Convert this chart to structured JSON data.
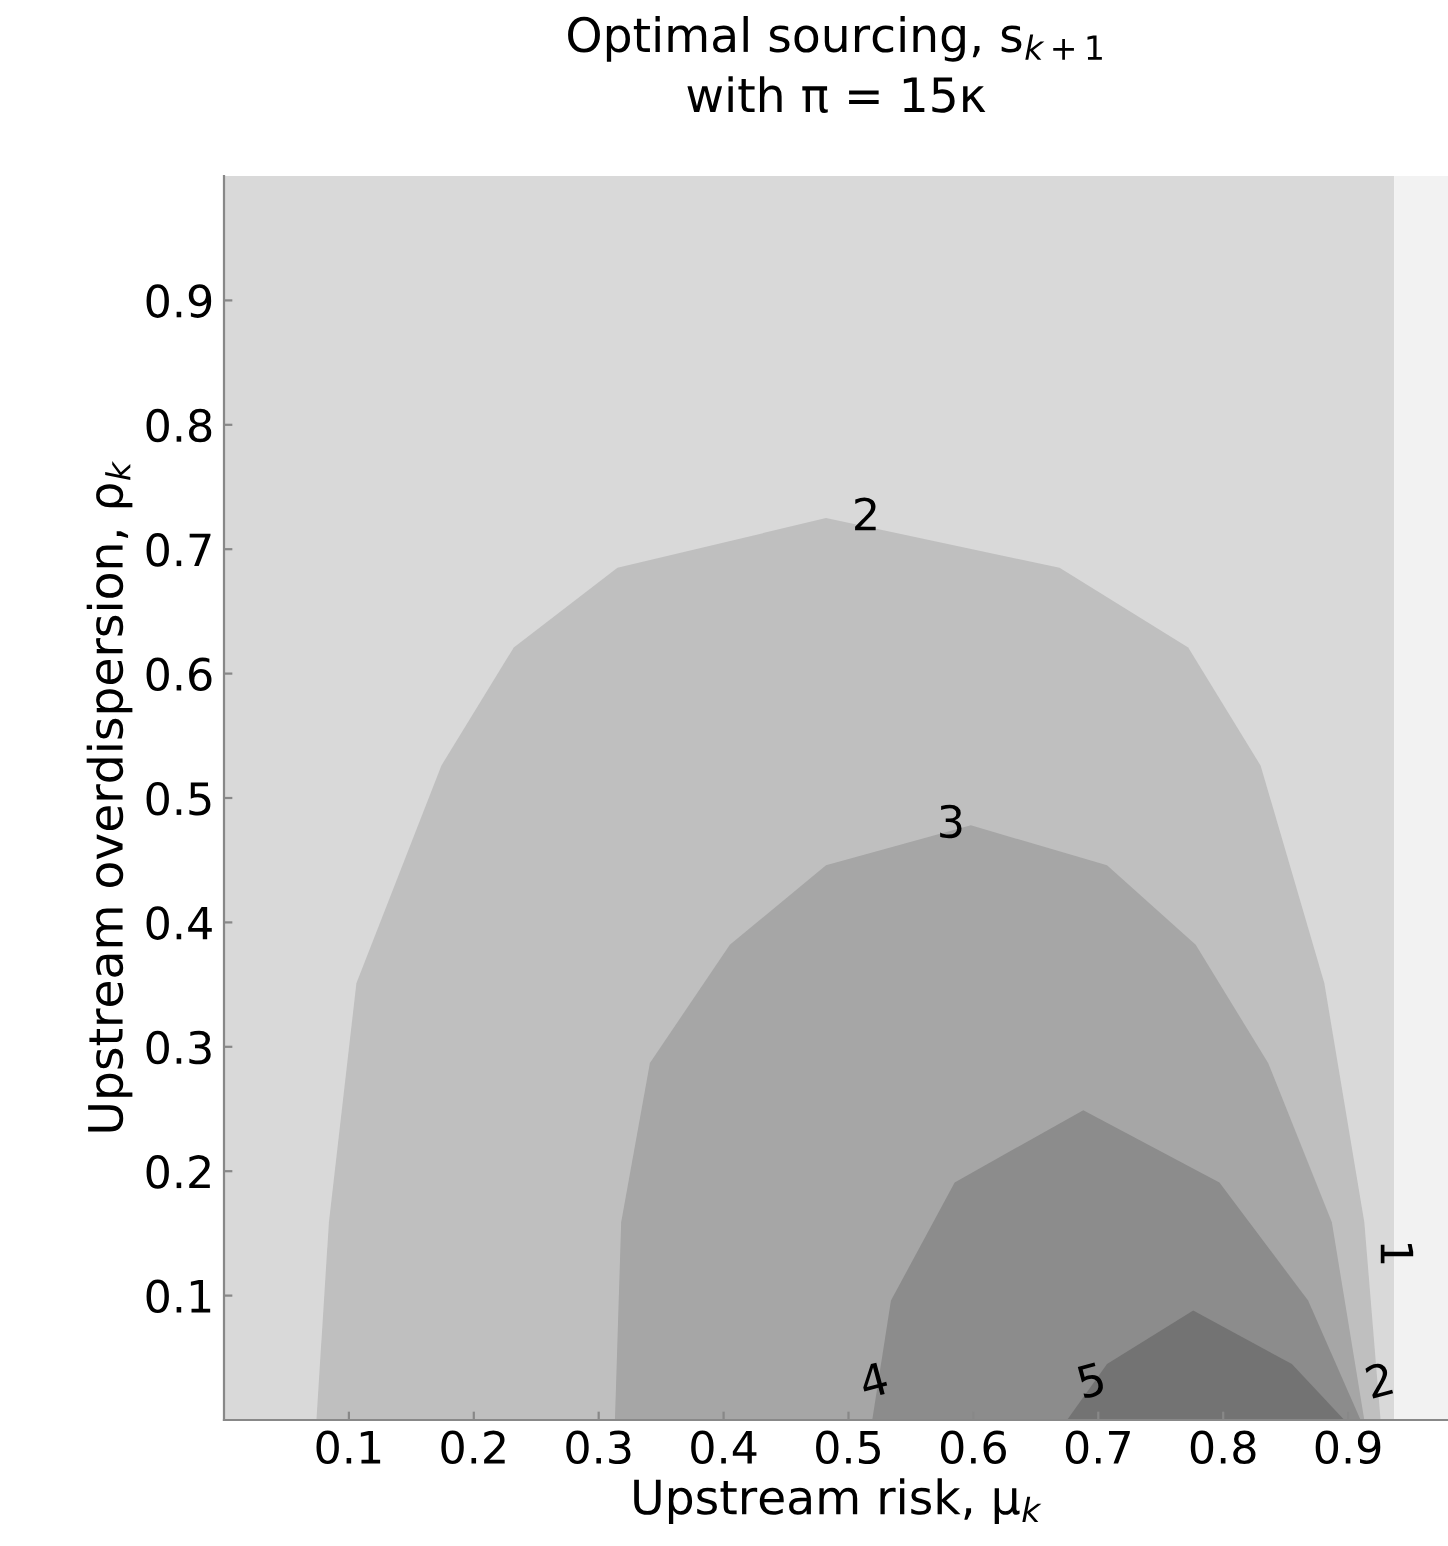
{
  "chart_data": {
    "type": "area",
    "title": "Optimal sourcing, s$_{k+1}$\nwith π = 15κ",
    "xlabel": "Upstream risk, μ$_{k}$",
    "ylabel": "Upstream overdispersion, ρ$_{k}$",
    "xlim": [
      0,
      0.98
    ],
    "ylim": [
      0,
      1.0
    ],
    "xticks": [
      0.1,
      0.2,
      0.3,
      0.4,
      0.5,
      0.6,
      0.7,
      0.8,
      0.9
    ],
    "yticks": [
      0.1,
      0.2,
      0.3,
      0.4,
      0.5,
      0.6,
      0.7,
      0.8,
      0.9
    ],
    "grid": false,
    "bands": [
      {
        "axis": "x",
        "from": 0,
        "to": 0.937,
        "color": "#d9d9d9"
      },
      {
        "axis": "x",
        "from": 0.937,
        "to": 0.98,
        "color": "#f2f2f2"
      }
    ],
    "series": [
      {
        "color": "#bfbfbf",
        "x": [
          0.074,
          0.084,
          0.106,
          0.174,
          0.232,
          0.315,
          0.482,
          0.669,
          0.772,
          0.83,
          0.881,
          0.913,
          0.926
        ],
        "values": [
          0,
          0.159,
          0.351,
          0.526,
          0.621,
          0.685,
          0.725,
          0.685,
          0.621,
          0.526,
          0.351,
          0.159,
          0
        ]
      },
      {
        "color": "#a6a6a6",
        "x": [
          0.313,
          0.318,
          0.341,
          0.405,
          0.482,
          0.598,
          0.707,
          0.778,
          0.836,
          0.887,
          0.913
        ],
        "values": [
          0,
          0.159,
          0.287,
          0.382,
          0.446,
          0.478,
          0.446,
          0.382,
          0.287,
          0.159,
          0
        ]
      },
      {
        "color": "#8c8c8c",
        "x": [
          0.519,
          0.534,
          0.585,
          0.688,
          0.797,
          0.868,
          0.91
        ],
        "values": [
          0,
          0.096,
          0.191,
          0.249,
          0.191,
          0.096,
          0
        ]
      },
      {
        "color": "#737373",
        "x": [
          0.675,
          0.707,
          0.776,
          0.855,
          0.897
        ],
        "values": [
          0,
          0.045,
          0.088,
          0.045,
          0
        ]
      }
    ],
    "annotations": [
      {
        "text": "2",
        "x": 0.514,
        "y": 0.725
      },
      {
        "text": "3",
        "x": 0.582,
        "y": 0.478
      },
      {
        "text": "4",
        "x": 0.521,
        "y": 0.029
      },
      {
        "text": "5",
        "x": 0.695,
        "y": 0.029
      },
      {
        "text": "2",
        "x": 0.926,
        "y": 0.029
      },
      {
        "text": "1",
        "x": 0.936,
        "y": 0.134
      }
    ]
  }
}
